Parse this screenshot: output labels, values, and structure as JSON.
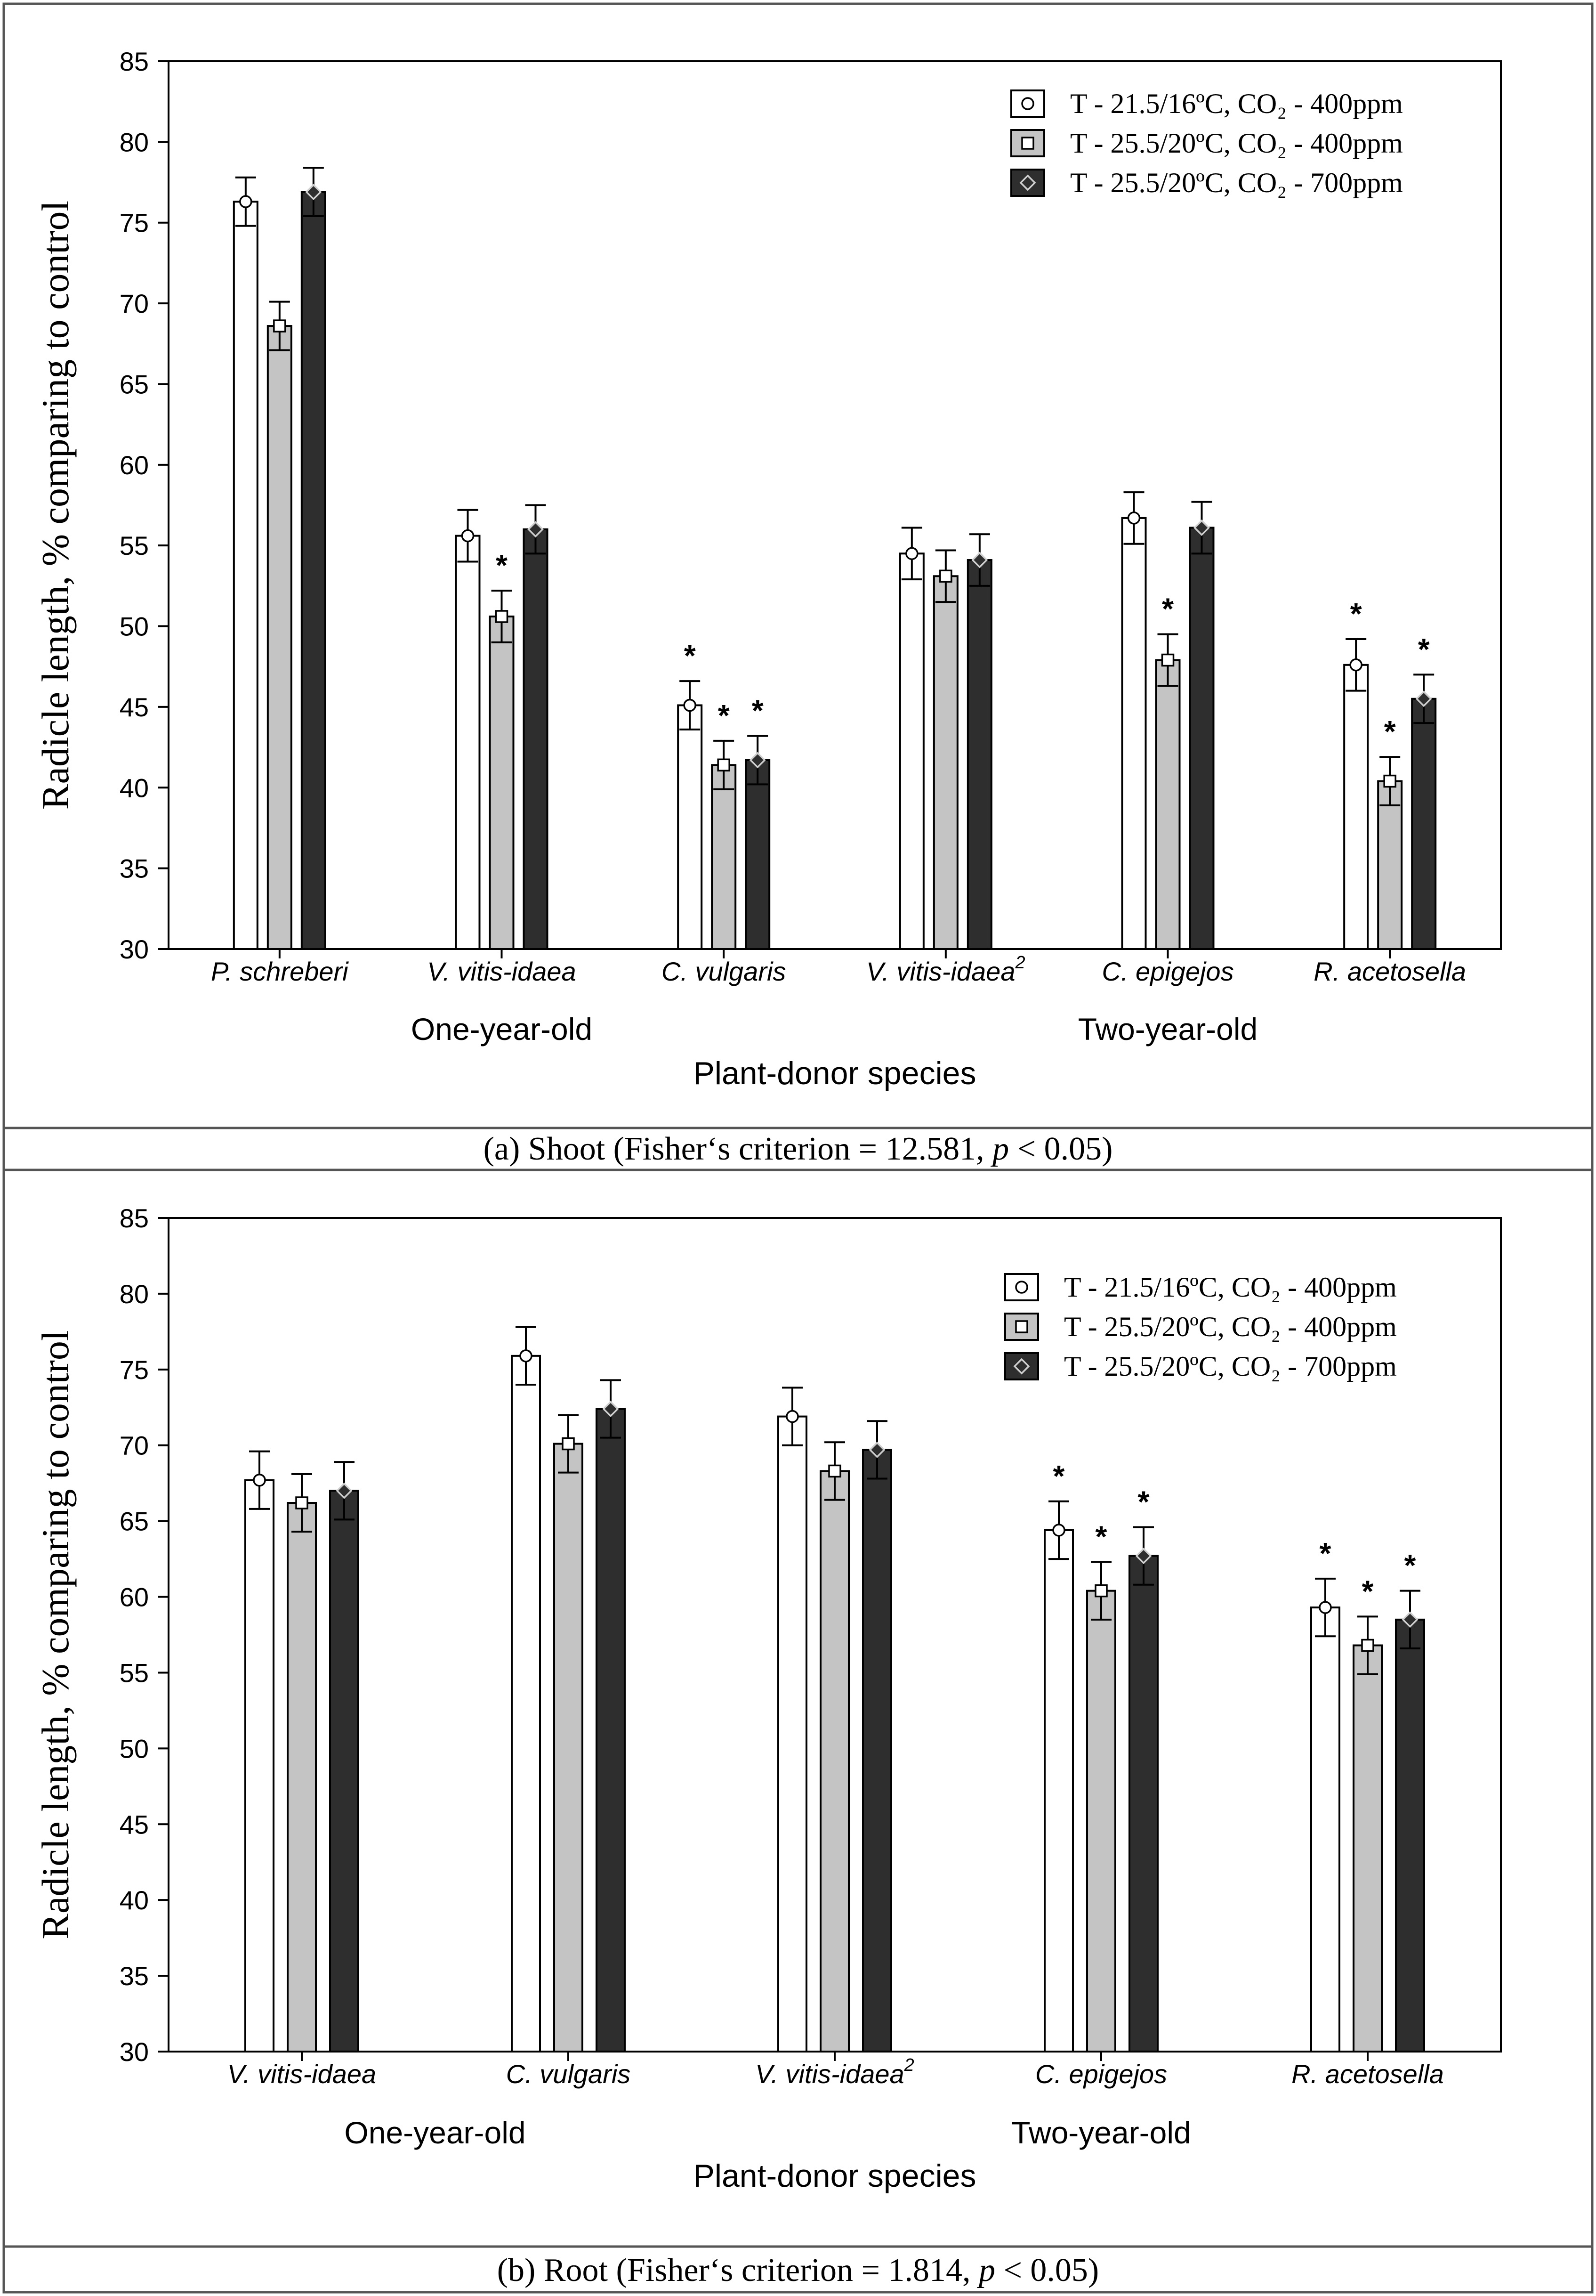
{
  "colors": {
    "series_fills": [
      "#ffffff",
      "#c4c4c4",
      "#2e2e2e"
    ],
    "marker_fills": [
      "#ffffff",
      "#ffffff",
      "#2e2e2e"
    ],
    "axis": "#000000",
    "frame": "#555555"
  },
  "chart_data": [
    {
      "type": "bar",
      "panel": "a",
      "caption_prefix": "(a)   Shoot (Fisher‘s criterion = 12.581, ",
      "caption_p": "p",
      "caption_suffix": " < 0.05)",
      "ylabel": "Radicle length,  % comparing to control",
      "xlabel": "Plant-donor species",
      "ylim": [
        30,
        85
      ],
      "yticks": [
        30,
        35,
        40,
        45,
        50,
        55,
        60,
        65,
        70,
        75,
        80,
        85
      ],
      "categories": [
        "P. schreberi",
        "V. vitis-idaea",
        "C. vulgaris",
        "V. vitis-idaea",
        "C. epigejos",
        "R. acetosella"
      ],
      "category_superscripts": [
        "",
        "",
        "",
        "2",
        "",
        ""
      ],
      "groups": [
        {
          "label": "One-year-old",
          "from": 0,
          "to": 2
        },
        {
          "label": "Two-year-old",
          "from": 3,
          "to": 5
        }
      ],
      "legend_position": "top-right",
      "series": [
        {
          "name": "T - 21.5/16ºC,  CO₂ - 400ppm",
          "marker": "circle",
          "values": [
            76.3,
            55.6,
            45.1,
            54.5,
            56.7,
            47.6
          ],
          "errors": [
            1.5,
            1.6,
            1.5,
            1.6,
            1.6,
            1.6
          ],
          "significant": [
            false,
            false,
            true,
            false,
            false,
            true
          ]
        },
        {
          "name": "T - 25.5/20ºC,  CO₂ - 400ppm",
          "marker": "square",
          "values": [
            68.6,
            50.6,
            41.4,
            53.1,
            47.9,
            40.4
          ],
          "errors": [
            1.5,
            1.6,
            1.5,
            1.6,
            1.6,
            1.5
          ],
          "significant": [
            false,
            true,
            true,
            false,
            true,
            true
          ]
        },
        {
          "name": "T - 25.5/20ºC,  CO₂ - 700ppm",
          "marker": "diamond",
          "values": [
            76.9,
            56.0,
            41.7,
            54.1,
            56.1,
            45.5
          ],
          "errors": [
            1.5,
            1.5,
            1.5,
            1.6,
            1.6,
            1.5
          ],
          "significant": [
            false,
            false,
            true,
            false,
            false,
            true
          ]
        }
      ]
    },
    {
      "type": "bar",
      "panel": "b",
      "caption_prefix": "(b)   Root (Fisher‘s criterion = 1.814, ",
      "caption_p": "p",
      "caption_suffix": " < 0.05)",
      "ylabel": "Radicle length,  % comparing to control",
      "xlabel": "Plant-donor species",
      "ylim": [
        30,
        85
      ],
      "yticks": [
        30,
        35,
        40,
        45,
        50,
        55,
        60,
        65,
        70,
        75,
        80,
        85
      ],
      "categories": [
        "V. vitis-idaea",
        "C. vulgaris",
        "V. vitis-idaea",
        "C. epigejos",
        "R. acetosella"
      ],
      "category_superscripts": [
        "",
        "",
        "2",
        "",
        ""
      ],
      "groups": [
        {
          "label": "One-year-old",
          "from": 0,
          "to": 1
        },
        {
          "label": "Two-year-old",
          "from": 2,
          "to": 4
        }
      ],
      "legend_position": "top-right",
      "series": [
        {
          "name": "T - 21.5/16ºC,  CO₂ - 400ppm",
          "marker": "circle",
          "values": [
            67.7,
            75.9,
            71.9,
            64.4,
            59.3
          ],
          "errors": [
            1.9,
            1.9,
            1.9,
            1.9,
            1.9
          ],
          "significant": [
            false,
            false,
            false,
            true,
            true
          ]
        },
        {
          "name": "T - 25.5/20ºC,  CO₂ - 400ppm",
          "marker": "square",
          "values": [
            66.2,
            70.1,
            68.3,
            60.4,
            56.8
          ],
          "errors": [
            1.9,
            1.9,
            1.9,
            1.9,
            1.9
          ],
          "significant": [
            false,
            false,
            false,
            true,
            true
          ]
        },
        {
          "name": "T - 25.5/20ºC,  CO₂ - 700ppm",
          "marker": "diamond",
          "values": [
            67.0,
            72.4,
            69.7,
            62.7,
            58.5
          ],
          "errors": [
            1.9,
            1.9,
            1.9,
            1.9,
            1.9
          ],
          "significant": [
            false,
            false,
            false,
            true,
            true
          ]
        }
      ]
    }
  ]
}
